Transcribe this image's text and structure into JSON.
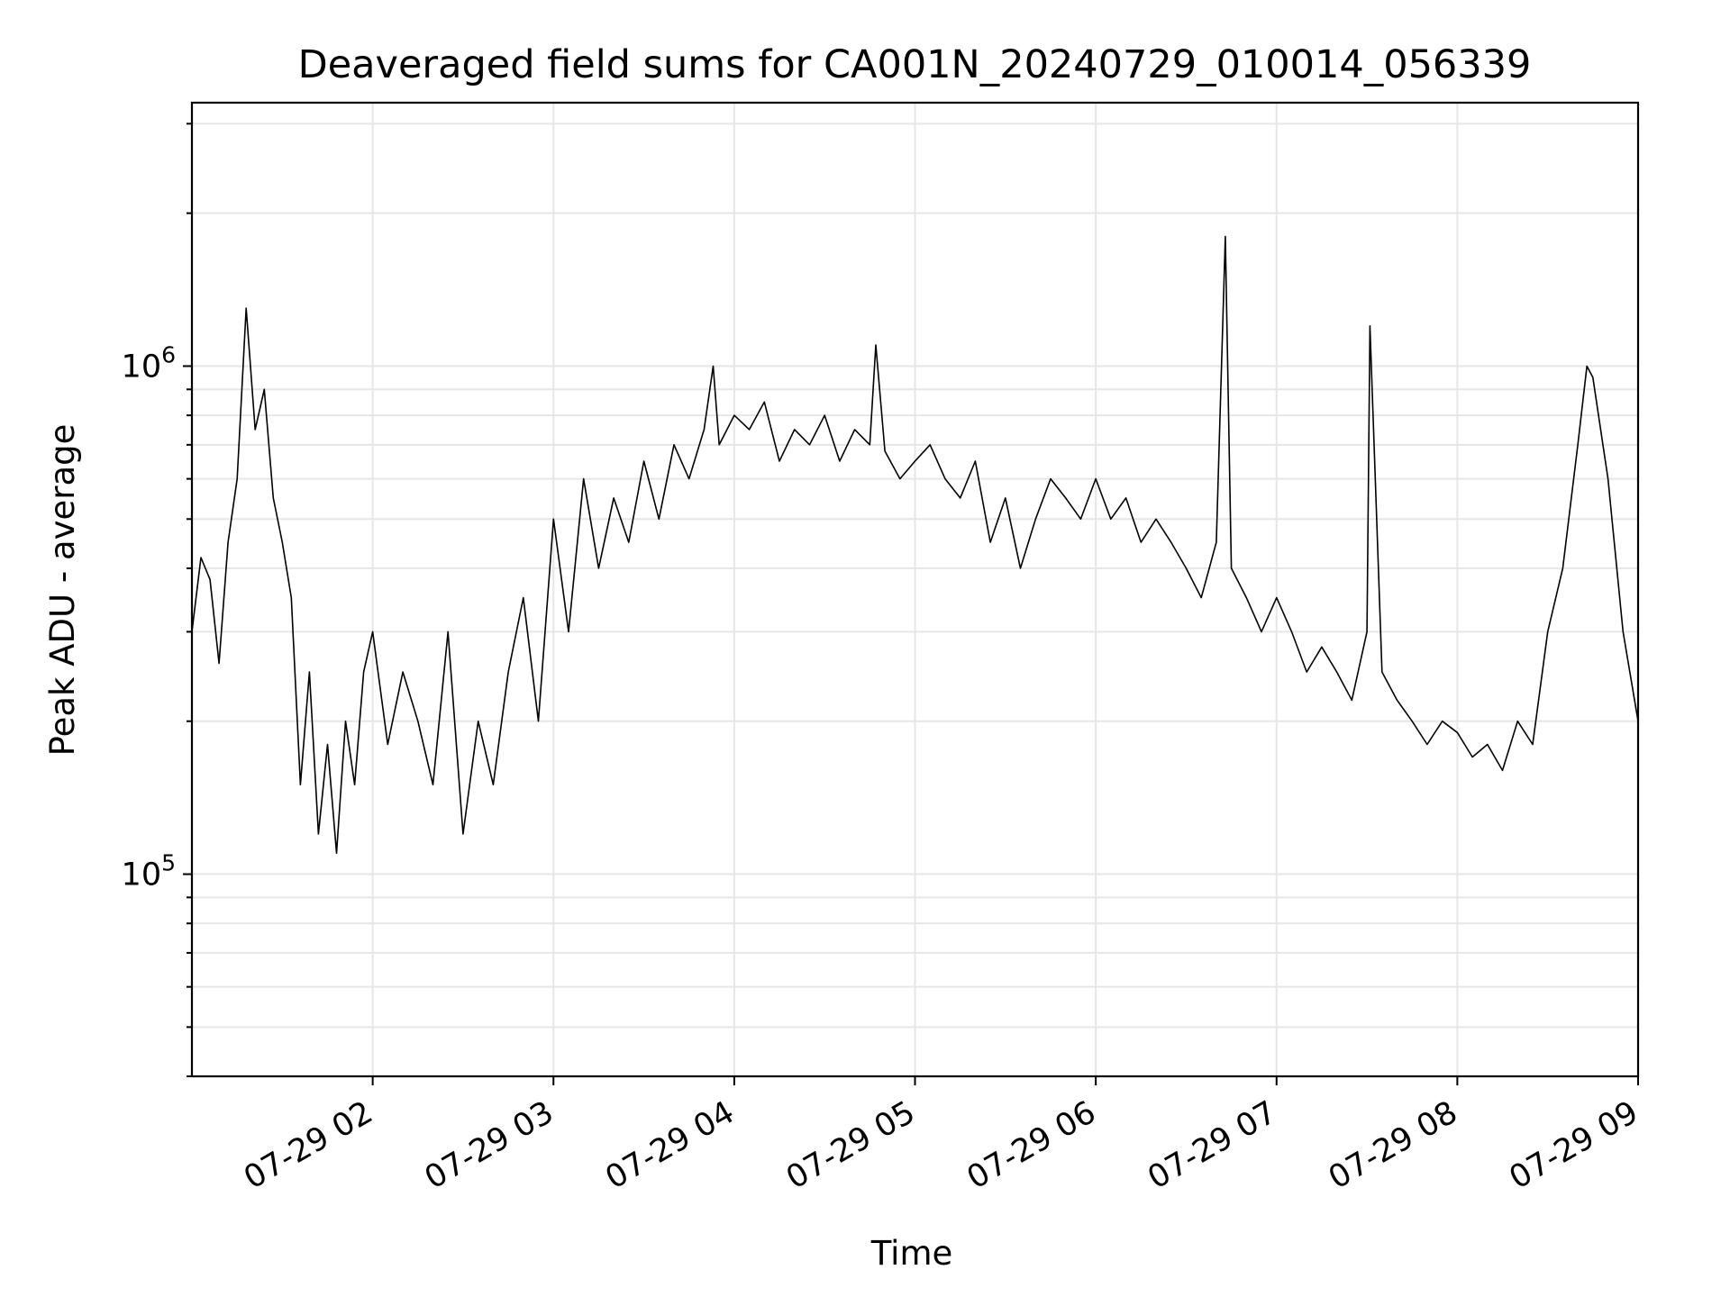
{
  "chart_data": {
    "type": "line",
    "title": "Deaveraged field sums for CA001N_20240729_010014_056339",
    "xlabel": "Time",
    "ylabel": "Peak ADU - average",
    "y_scale": "log",
    "grid": true,
    "line_color": "#000000",
    "x_ticks": [
      "07-29 02",
      "07-29 03",
      "07-29 04",
      "07-29 05",
      "07-29 06",
      "07-29 07",
      "07-29 08",
      "07-29 09"
    ],
    "y_ticks": [
      {
        "base": "10",
        "exp": "5",
        "value": 100000
      },
      {
        "base": "10",
        "exp": "6",
        "value": 1000000
      }
    ],
    "xlim": [
      "2024-07-29 01:00",
      "2024-07-29 09:00"
    ],
    "ylim": [
      40000,
      3300000
    ],
    "series": [
      {
        "x": [
          "01:00",
          "01:03",
          "01:06",
          "01:09",
          "01:12",
          "01:15",
          "01:18",
          "01:21",
          "01:24",
          "01:27",
          "01:30",
          "01:33",
          "01:36",
          "01:39",
          "01:42",
          "01:45",
          "01:48",
          "01:51",
          "01:54",
          "01:57",
          "02:00",
          "02:05",
          "02:10",
          "02:15",
          "02:20",
          "02:25",
          "02:30",
          "02:35",
          "02:40",
          "02:45",
          "02:50",
          "02:55",
          "03:00",
          "03:05",
          "03:10",
          "03:15",
          "03:20",
          "03:25",
          "03:30",
          "03:35",
          "03:40",
          "03:45",
          "03:50",
          "03:53",
          "03:55",
          "04:00",
          "04:05",
          "04:10",
          "04:15",
          "04:20",
          "04:25",
          "04:30",
          "04:35",
          "04:40",
          "04:45",
          "04:47",
          "04:50",
          "04:55",
          "05:00",
          "05:05",
          "05:10",
          "05:15",
          "05:20",
          "05:25",
          "05:30",
          "05:35",
          "05:40",
          "05:45",
          "05:50",
          "05:55",
          "06:00",
          "06:05",
          "06:10",
          "06:15",
          "06:20",
          "06:25",
          "06:30",
          "06:35",
          "06:40",
          "06:43",
          "06:45",
          "06:50",
          "06:55",
          "07:00",
          "07:05",
          "07:10",
          "07:15",
          "07:20",
          "07:25",
          "07:30",
          "07:31",
          "07:35",
          "07:40",
          "07:45",
          "07:50",
          "07:55",
          "08:00",
          "08:05",
          "08:10",
          "08:15",
          "08:20",
          "08:25",
          "08:30",
          "08:35",
          "08:40",
          "08:43",
          "08:45",
          "08:50",
          "08:55",
          "09:00"
        ],
        "y": [
          300000,
          420000,
          380000,
          260000,
          450000,
          600000,
          1300000,
          750000,
          900000,
          550000,
          450000,
          350000,
          150000,
          250000,
          120000,
          180000,
          110000,
          200000,
          150000,
          250000,
          300000,
          180000,
          250000,
          200000,
          150000,
          300000,
          120000,
          200000,
          150000,
          250000,
          350000,
          200000,
          500000,
          300000,
          600000,
          400000,
          550000,
          450000,
          650000,
          500000,
          700000,
          600000,
          750000,
          1000000,
          700000,
          800000,
          750000,
          850000,
          650000,
          750000,
          700000,
          800000,
          650000,
          750000,
          700000,
          1100000,
          680000,
          600000,
          650000,
          700000,
          600000,
          550000,
          650000,
          450000,
          550000,
          400000,
          500000,
          600000,
          550000,
          500000,
          600000,
          500000,
          550000,
          450000,
          500000,
          450000,
          400000,
          350000,
          450000,
          1800000,
          400000,
          350000,
          300000,
          350000,
          300000,
          250000,
          280000,
          250000,
          220000,
          300000,
          1200000,
          250000,
          220000,
          200000,
          180000,
          200000,
          190000,
          170000,
          180000,
          160000,
          200000,
          180000,
          300000,
          400000,
          700000,
          1000000,
          950000,
          600000,
          300000,
          200000
        ]
      }
    ]
  }
}
